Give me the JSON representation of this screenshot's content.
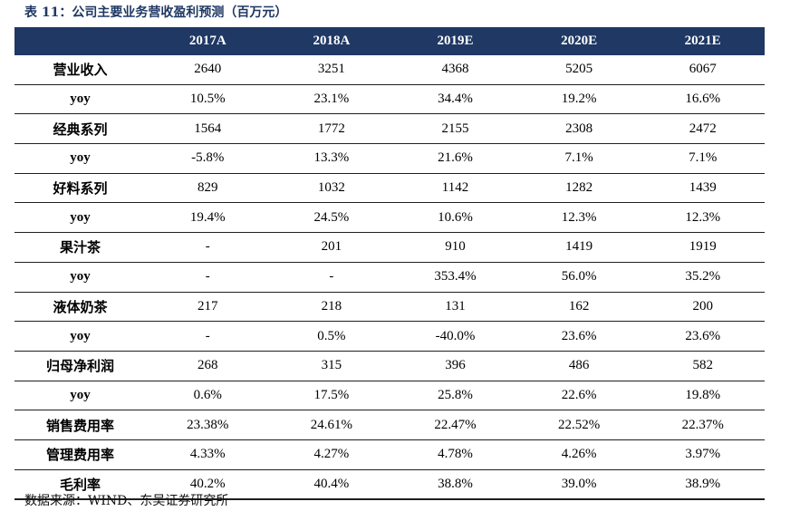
{
  "title": "表 11：公司主要业务营收盈利预测（百万元）",
  "columns": [
    "",
    "2017A",
    "2018A",
    "2019E",
    "2020E",
    "2021E"
  ],
  "rows": [
    {
      "label": "营业收入",
      "values": [
        "2640",
        "3251",
        "4368",
        "5205",
        "6067"
      ]
    },
    {
      "label": "yoy",
      "values": [
        "10.5%",
        "23.1%",
        "34.4%",
        "19.2%",
        "16.6%"
      ]
    },
    {
      "label": "经典系列",
      "values": [
        "1564",
        "1772",
        "2155",
        "2308",
        "2472"
      ]
    },
    {
      "label": "yoy",
      "values": [
        "-5.8%",
        "13.3%",
        "21.6%",
        "7.1%",
        "7.1%"
      ]
    },
    {
      "label": "好料系列",
      "values": [
        "829",
        "1032",
        "1142",
        "1282",
        "1439"
      ]
    },
    {
      "label": "yoy",
      "values": [
        "19.4%",
        "24.5%",
        "10.6%",
        "12.3%",
        "12.3%"
      ]
    },
    {
      "label": "果汁茶",
      "values": [
        "-",
        "201",
        "910",
        "1419",
        "1919"
      ]
    },
    {
      "label": "yoy",
      "values": [
        "-",
        "-",
        "353.4%",
        "56.0%",
        "35.2%"
      ]
    },
    {
      "label": "液体奶茶",
      "values": [
        "217",
        "218",
        "131",
        "162",
        "200"
      ]
    },
    {
      "label": "yoy",
      "values": [
        "-",
        "0.5%",
        "-40.0%",
        "23.6%",
        "23.6%"
      ]
    },
    {
      "label": "归母净利润",
      "values": [
        "268",
        "315",
        "396",
        "486",
        "582"
      ]
    },
    {
      "label": "yoy",
      "values": [
        "0.6%",
        "17.5%",
        "25.8%",
        "22.6%",
        "19.8%"
      ]
    },
    {
      "label": "销售费用率",
      "values": [
        "23.38%",
        "24.61%",
        "22.47%",
        "22.52%",
        "22.37%"
      ]
    },
    {
      "label": "管理费用率",
      "values": [
        "4.33%",
        "4.27%",
        "4.78%",
        "4.26%",
        "3.97%"
      ]
    },
    {
      "label": "毛利率",
      "values": [
        "40.2%",
        "40.4%",
        "38.8%",
        "39.0%",
        "38.9%"
      ]
    }
  ],
  "source": "数据来源：WIND、东吴证券研究所"
}
